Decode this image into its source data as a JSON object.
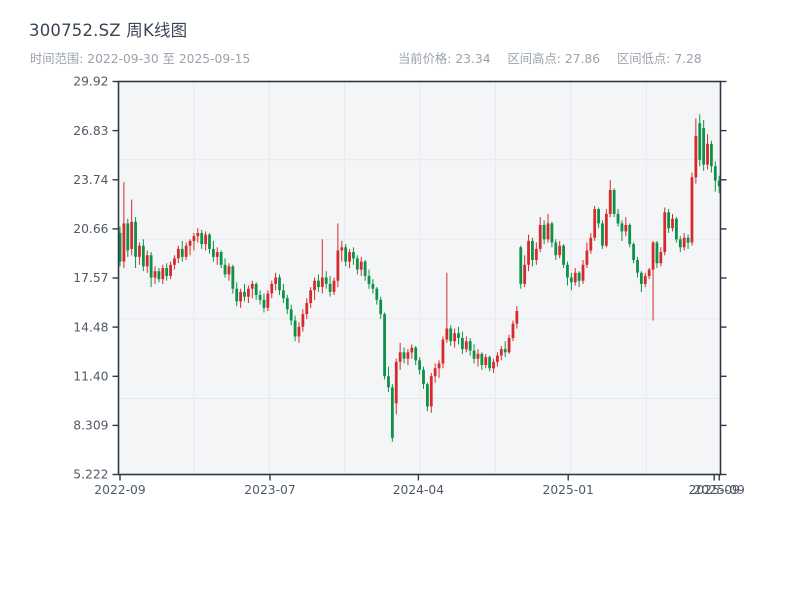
{
  "header": {
    "title": "300752.SZ 周K线图",
    "date_range_label": "时间范围: 2022-09-30 至 2025-09-15",
    "stats": {
      "current_label": "当前价格:",
      "current_value": "23.34",
      "high_label": "区间高点:",
      "high_value": "27.86",
      "low_label": "区间低点:",
      "low_value": "7.28"
    }
  },
  "chart_data": {
    "type": "candlestick",
    "symbol": "300752.SZ",
    "interval": "weekly",
    "title": "300752.SZ 周K线图",
    "date_range": [
      "2022-09-30",
      "2025-09-15"
    ],
    "current_price": 23.34,
    "range_high": 27.86,
    "range_low": 7.28,
    "legend": "none",
    "grid": {
      "h_values": [
        10,
        15,
        20,
        25
      ],
      "v_fractions": [
        0.1252,
        0.2504,
        0.3756,
        0.5008,
        0.6261,
        0.7513,
        0.8765
      ]
    },
    "colors": {
      "up": "#d62b2c",
      "down": "#0e9148",
      "plot_bg": "#f4f5f7",
      "grid": "#e6e9ec",
      "spine": "#2e3947",
      "tick_label": "#4e5a68"
    },
    "y_axis": {
      "min": 5.222,
      "max": 29.92,
      "ticks": [
        {
          "v": 5.222,
          "label": "5.222"
        },
        {
          "v": 8.309,
          "label": "8.309"
        },
        {
          "v": 11.396,
          "label": "11.40"
        },
        {
          "v": 14.484,
          "label": "14.48"
        },
        {
          "v": 17.571,
          "label": "17.57"
        },
        {
          "v": 20.658,
          "label": "20.66"
        },
        {
          "v": 23.745,
          "label": "23.74"
        },
        {
          "v": 26.833,
          "label": "26.83"
        },
        {
          "v": 29.92,
          "label": "29.92"
        }
      ]
    },
    "x_axis": {
      "ticks": [
        {
          "f": 0.0,
          "label": "2022-09"
        },
        {
          "f": 0.2504,
          "label": "2023-07"
        },
        {
          "f": 0.498,
          "label": "2024-04"
        },
        {
          "f": 0.748,
          "label": "2025-01"
        },
        {
          "f": 0.9917,
          "label": "2025-09"
        },
        {
          "f": 1.0,
          "label": "2025-09"
        }
      ]
    },
    "ohlc": [
      [
        "2022-09-30",
        20.4,
        20.8,
        18.3,
        18.6
      ],
      [
        "2022-10-07",
        18.6,
        23.6,
        18.2,
        21.0
      ],
      [
        "2022-10-14",
        21.0,
        21.3,
        18.9,
        19.3
      ],
      [
        "2022-10-21",
        19.4,
        22.5,
        19.0,
        21.1
      ],
      [
        "2022-10-28",
        21.1,
        21.4,
        18.2,
        18.9
      ],
      [
        "2022-11-04",
        18.9,
        19.8,
        18.4,
        19.6
      ],
      [
        "2022-11-11",
        19.6,
        20.0,
        18.0,
        18.3
      ],
      [
        "2022-11-18",
        18.3,
        19.3,
        17.9,
        19.0
      ],
      [
        "2022-11-25",
        19.0,
        19.2,
        17.0,
        17.6
      ],
      [
        "2022-12-02",
        17.6,
        18.3,
        17.2,
        18.0
      ],
      [
        "2022-12-09",
        18.0,
        18.2,
        17.3,
        17.5
      ],
      [
        "2022-12-16",
        17.5,
        18.4,
        17.2,
        18.2
      ],
      [
        "2022-12-23",
        18.2,
        18.5,
        17.4,
        17.7
      ],
      [
        "2022-12-30",
        17.7,
        18.6,
        17.5,
        18.4
      ],
      [
        "2023-01-06",
        18.4,
        19.0,
        18.1,
        18.8
      ],
      [
        "2023-01-13",
        18.8,
        19.6,
        18.5,
        19.4
      ],
      [
        "2023-01-20",
        19.4,
        19.9,
        18.6,
        18.9
      ],
      [
        "2023-01-27",
        18.9,
        19.8,
        18.7,
        19.6
      ],
      [
        "2023-02-03",
        19.6,
        20.0,
        19.0,
        19.9
      ],
      [
        "2023-02-10",
        19.9,
        20.4,
        19.3,
        20.2
      ],
      [
        "2023-02-17",
        20.2,
        20.7,
        19.8,
        20.4
      ],
      [
        "2023-02-24",
        20.4,
        20.6,
        19.4,
        19.7
      ],
      [
        "2023-03-03",
        19.7,
        20.5,
        19.3,
        20.3
      ],
      [
        "2023-03-10",
        20.3,
        20.4,
        19.1,
        19.4
      ],
      [
        "2023-03-17",
        19.4,
        19.9,
        18.6,
        18.9
      ],
      [
        "2023-03-24",
        18.9,
        19.5,
        18.4,
        19.2
      ],
      [
        "2023-03-31",
        19.2,
        19.3,
        18.2,
        18.4
      ],
      [
        "2023-04-07",
        18.4,
        18.8,
        17.6,
        17.8
      ],
      [
        "2023-04-14",
        17.8,
        18.5,
        17.4,
        18.3
      ],
      [
        "2023-04-21",
        18.3,
        18.4,
        16.6,
        16.9
      ],
      [
        "2023-04-28",
        16.9,
        17.3,
        15.8,
        16.1
      ],
      [
        "2023-05-05",
        16.1,
        16.9,
        15.7,
        16.7
      ],
      [
        "2023-05-12",
        16.7,
        17.2,
        16.1,
        16.4
      ],
      [
        "2023-05-19",
        16.4,
        17.1,
        16.0,
        16.9
      ],
      [
        "2023-05-26",
        16.9,
        17.4,
        16.3,
        17.2
      ],
      [
        "2023-06-02",
        17.2,
        17.3,
        16.2,
        16.5
      ],
      [
        "2023-06-09",
        16.5,
        16.8,
        15.9,
        16.2
      ],
      [
        "2023-06-16",
        16.2,
        16.6,
        15.4,
        15.7
      ],
      [
        "2023-06-23",
        15.7,
        16.8,
        15.5,
        16.6
      ],
      [
        "2023-06-30",
        16.6,
        17.4,
        16.3,
        17.2
      ],
      [
        "2023-07-07",
        17.2,
        17.9,
        16.8,
        17.6
      ],
      [
        "2023-07-14",
        17.6,
        17.8,
        16.5,
        16.8
      ],
      [
        "2023-07-21",
        16.8,
        17.2,
        16.0,
        16.3
      ],
      [
        "2023-07-28",
        16.3,
        16.5,
        15.3,
        15.6
      ],
      [
        "2023-08-04",
        15.6,
        15.9,
        14.6,
        14.9
      ],
      [
        "2023-08-11",
        14.9,
        15.2,
        13.6,
        13.9
      ],
      [
        "2023-08-18",
        13.9,
        14.8,
        13.5,
        14.5
      ],
      [
        "2023-08-25",
        14.5,
        15.6,
        14.2,
        15.3
      ],
      [
        "2023-09-01",
        15.3,
        16.3,
        15.0,
        16.0
      ],
      [
        "2023-09-08",
        16.0,
        17.0,
        15.7,
        16.8
      ],
      [
        "2023-09-15",
        16.8,
        17.6,
        16.2,
        17.4
      ],
      [
        "2023-09-22",
        17.4,
        17.8,
        16.7,
        17.0
      ],
      [
        "2023-09-29",
        17.0,
        20.0,
        16.6,
        17.6
      ],
      [
        "2023-10-06",
        17.6,
        18.0,
        16.9,
        17.2
      ],
      [
        "2023-10-13",
        17.2,
        17.7,
        16.4,
        16.7
      ],
      [
        "2023-10-20",
        16.7,
        17.6,
        16.5,
        17.4
      ],
      [
        "2023-10-27",
        17.4,
        21.0,
        17.0,
        19.3
      ],
      [
        "2023-11-03",
        19.3,
        19.9,
        18.6,
        19.5
      ],
      [
        "2023-11-10",
        19.5,
        19.7,
        18.3,
        18.6
      ],
      [
        "2023-11-17",
        18.6,
        19.4,
        18.2,
        19.2
      ],
      [
        "2023-11-24",
        19.2,
        19.5,
        18.4,
        18.8
      ],
      [
        "2023-12-01",
        18.8,
        19.0,
        17.8,
        18.1
      ],
      [
        "2023-12-08",
        18.1,
        18.9,
        17.7,
        18.6
      ],
      [
        "2023-12-15",
        18.6,
        18.7,
        17.4,
        17.7
      ],
      [
        "2023-12-22",
        17.7,
        18.1,
        16.9,
        17.2
      ],
      [
        "2023-12-29",
        17.2,
        17.5,
        16.6,
        16.9
      ],
      [
        "2024-01-05",
        16.9,
        17.0,
        15.9,
        16.2
      ],
      [
        "2024-01-12",
        16.2,
        16.4,
        15.0,
        15.3
      ],
      [
        "2024-01-19",
        15.3,
        15.4,
        11.2,
        11.4
      ],
      [
        "2024-01-26",
        11.4,
        12.0,
        10.4,
        10.7
      ],
      [
        "2024-02-02",
        10.7,
        10.9,
        7.28,
        7.52
      ],
      [
        "2024-02-09",
        9.7,
        12.5,
        9.0,
        12.3
      ],
      [
        "2024-02-16",
        12.3,
        13.5,
        11.8,
        12.9
      ],
      [
        "2024-02-23",
        12.9,
        13.2,
        12.2,
        12.5
      ],
      [
        "2024-03-01",
        12.5,
        13.1,
        12.1,
        12.9
      ],
      [
        "2024-03-08",
        12.9,
        13.4,
        12.5,
        13.2
      ],
      [
        "2024-03-15",
        13.2,
        13.3,
        12.1,
        12.4
      ],
      [
        "2024-03-22",
        12.4,
        12.6,
        11.5,
        11.8
      ],
      [
        "2024-03-29",
        11.8,
        12.0,
        10.6,
        10.9
      ],
      [
        "2024-04-05",
        10.9,
        11.0,
        9.2,
        9.5
      ],
      [
        "2024-04-12",
        9.5,
        11.6,
        9.1,
        11.4
      ],
      [
        "2024-04-19",
        11.4,
        12.2,
        11.0,
        11.9
      ],
      [
        "2024-04-26",
        11.9,
        12.4,
        11.3,
        12.2
      ],
      [
        "2024-05-03",
        12.2,
        13.9,
        11.9,
        13.7
      ],
      [
        "2024-05-10",
        13.7,
        17.9,
        13.5,
        14.4
      ],
      [
        "2024-05-17",
        14.4,
        14.6,
        13.3,
        13.6
      ],
      [
        "2024-05-24",
        13.6,
        14.4,
        13.2,
        14.1
      ],
      [
        "2024-05-31",
        14.1,
        14.5,
        13.4,
        13.8
      ],
      [
        "2024-06-07",
        13.8,
        14.2,
        12.8,
        13.1
      ],
      [
        "2024-06-14",
        13.1,
        13.9,
        12.9,
        13.6
      ],
      [
        "2024-06-21",
        13.6,
        13.8,
        12.7,
        13.0
      ],
      [
        "2024-06-28",
        13.0,
        13.4,
        12.2,
        12.5
      ],
      [
        "2024-07-05",
        12.5,
        13.1,
        12.0,
        12.8
      ],
      [
        "2024-07-12",
        12.8,
        12.9,
        11.8,
        12.1
      ],
      [
        "2024-07-19",
        12.1,
        12.8,
        11.9,
        12.6
      ],
      [
        "2024-07-26",
        12.6,
        12.7,
        11.7,
        11.9
      ],
      [
        "2024-08-02",
        11.9,
        12.5,
        11.6,
        12.3
      ],
      [
        "2024-08-09",
        12.3,
        12.9,
        12.0,
        12.7
      ],
      [
        "2024-08-16",
        12.7,
        13.3,
        12.4,
        13.1
      ],
      [
        "2024-08-23",
        13.1,
        13.6,
        12.6,
        12.9
      ],
      [
        "2024-08-30",
        12.9,
        14.0,
        12.8,
        13.8
      ],
      [
        "2024-09-06",
        13.8,
        14.9,
        13.6,
        14.7
      ],
      [
        "2024-09-13",
        14.7,
        15.8,
        14.4,
        15.5
      ],
      [
        "2024-09-20",
        19.5,
        19.6,
        16.9,
        17.2
      ],
      [
        "2024-09-27",
        17.2,
        19.0,
        17.0,
        18.4
      ],
      [
        "2024-10-04",
        18.4,
        20.3,
        18.0,
        19.9
      ],
      [
        "2024-10-11",
        19.9,
        20.1,
        18.3,
        18.7
      ],
      [
        "2024-10-18",
        18.7,
        19.8,
        18.4,
        19.4
      ],
      [
        "2024-10-25",
        19.4,
        21.4,
        19.2,
        20.9
      ],
      [
        "2024-11-01",
        20.9,
        21.2,
        19.7,
        20.0
      ],
      [
        "2024-11-08",
        20.0,
        21.6,
        19.8,
        21.0
      ],
      [
        "2024-11-15",
        21.0,
        21.1,
        19.5,
        19.8
      ],
      [
        "2024-11-22",
        19.8,
        20.0,
        18.7,
        19.0
      ],
      [
        "2024-11-29",
        19.0,
        19.9,
        18.8,
        19.6
      ],
      [
        "2024-12-06",
        19.6,
        19.7,
        18.2,
        18.4
      ],
      [
        "2024-12-13",
        18.4,
        18.6,
        17.1,
        17.6
      ],
      [
        "2024-12-20",
        17.6,
        17.9,
        16.8,
        17.3
      ],
      [
        "2024-12-27",
        17.3,
        18.2,
        17.1,
        17.9
      ],
      [
        "2025-01-03",
        17.9,
        18.0,
        17.0,
        17.4
      ],
      [
        "2025-01-10",
        17.4,
        18.7,
        17.2,
        18.4
      ],
      [
        "2025-01-17",
        18.4,
        19.8,
        18.2,
        19.3
      ],
      [
        "2025-01-24",
        19.3,
        20.4,
        19.1,
        20.1
      ],
      [
        "2025-01-31",
        20.1,
        22.1,
        19.9,
        21.9
      ],
      [
        "2025-02-07",
        21.9,
        22.0,
        20.7,
        21.0
      ],
      [
        "2025-02-14",
        21.0,
        21.2,
        19.4,
        19.6
      ],
      [
        "2025-02-21",
        19.6,
        21.9,
        19.5,
        21.6
      ],
      [
        "2025-02-28",
        21.6,
        23.74,
        21.4,
        23.1
      ],
      [
        "2025-03-07",
        23.1,
        23.2,
        21.4,
        21.6
      ],
      [
        "2025-03-14",
        21.6,
        21.9,
        20.8,
        21.0
      ],
      [
        "2025-03-21",
        21.0,
        21.2,
        19.9,
        20.5
      ],
      [
        "2025-03-28",
        20.5,
        21.4,
        20.2,
        20.9
      ],
      [
        "2025-04-04",
        20.9,
        21.0,
        19.5,
        19.7
      ],
      [
        "2025-04-11",
        19.7,
        19.8,
        18.5,
        18.7
      ],
      [
        "2025-04-18",
        18.7,
        18.9,
        17.6,
        17.9
      ],
      [
        "2025-04-25",
        17.9,
        18.0,
        16.7,
        17.2
      ],
      [
        "2025-05-02",
        17.2,
        17.9,
        17.0,
        17.7
      ],
      [
        "2025-05-09",
        17.7,
        18.2,
        17.5,
        18.1
      ],
      [
        "2025-05-16",
        18.1,
        19.9,
        14.9,
        19.8
      ],
      [
        "2025-05-23",
        19.8,
        19.9,
        18.2,
        18.5
      ],
      [
        "2025-05-30",
        18.5,
        19.5,
        18.3,
        19.2
      ],
      [
        "2025-06-06",
        19.2,
        22.0,
        19.0,
        21.7
      ],
      [
        "2025-06-13",
        21.7,
        21.9,
        20.4,
        20.7
      ],
      [
        "2025-06-20",
        20.7,
        21.6,
        20.5,
        21.3
      ],
      [
        "2025-06-27",
        21.3,
        21.4,
        19.8,
        20.0
      ],
      [
        "2025-07-04",
        20.0,
        20.2,
        19.2,
        19.5
      ],
      [
        "2025-07-11",
        19.5,
        20.4,
        19.3,
        20.1
      ],
      [
        "2025-07-18",
        20.1,
        20.3,
        19.4,
        19.8
      ],
      [
        "2025-07-25",
        19.8,
        24.2,
        19.6,
        23.9
      ],
      [
        "2025-08-01",
        23.9,
        27.6,
        23.5,
        26.5
      ],
      [
        "2025-08-08",
        27.3,
        27.86,
        24.6,
        25.0
      ],
      [
        "2025-08-15",
        27.0,
        27.5,
        24.3,
        24.7
      ],
      [
        "2025-08-22",
        24.7,
        26.6,
        24.4,
        26.0
      ],
      [
        "2025-08-29",
        26.0,
        26.2,
        24.2,
        24.6
      ],
      [
        "2025-09-05",
        24.6,
        24.9,
        23.0,
        23.7
      ],
      [
        "2025-09-12",
        23.7,
        24.0,
        22.9,
        23.34
      ]
    ]
  }
}
